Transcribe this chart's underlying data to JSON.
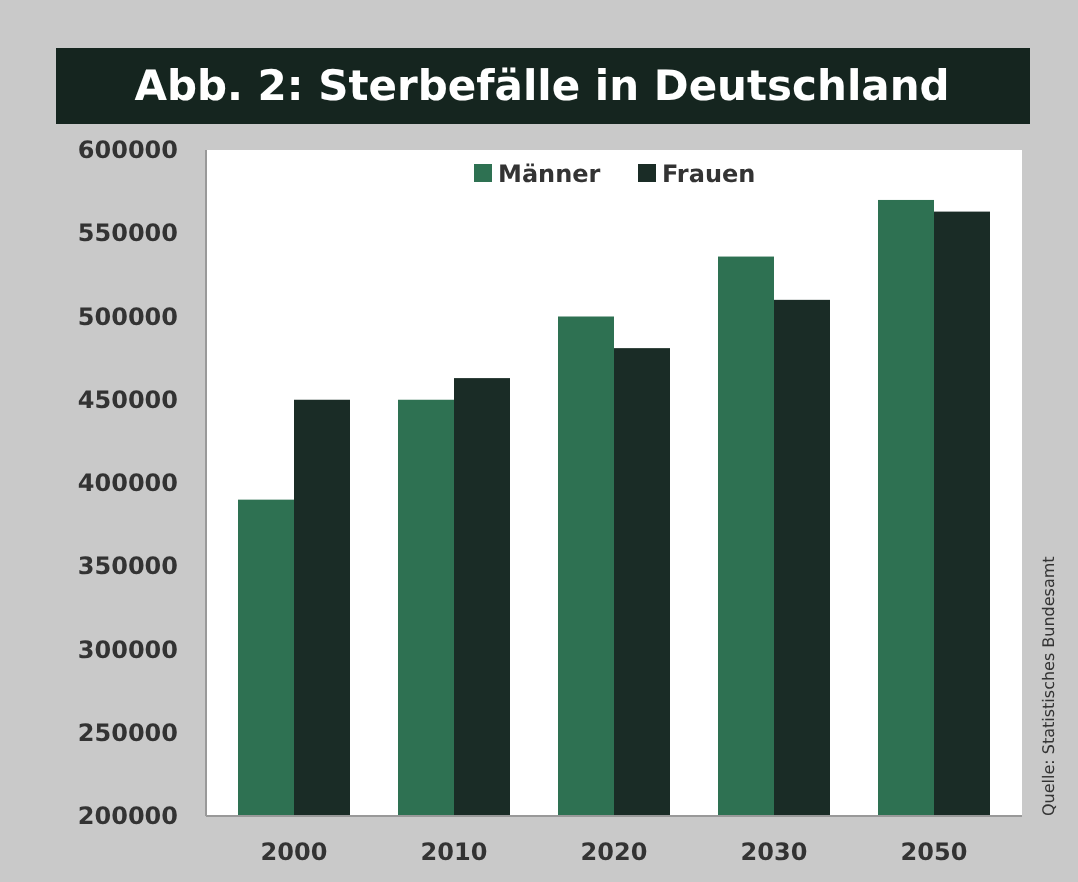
{
  "chart_data": {
    "type": "bar",
    "title": "Abb. 2: Sterbefälle in Deutschland",
    "categories": [
      "2000",
      "2010",
      "2020",
      "2030",
      "2050"
    ],
    "series": [
      {
        "name": "Männer",
        "color": "#2e7152",
        "values": [
          390000,
          450000,
          500000,
          536000,
          570000
        ]
      },
      {
        "name": "Frauen",
        "color": "#1a2c26",
        "values": [
          450000,
          463000,
          481000,
          510000,
          563000
        ]
      }
    ],
    "ylim": [
      200000,
      600000
    ],
    "yticks": [
      200000,
      250000,
      300000,
      350000,
      400000,
      450000,
      500000,
      550000,
      600000
    ],
    "grid": false,
    "legend": "top",
    "annotations": [
      "Quelle: Statistisches Bundesamt"
    ]
  }
}
